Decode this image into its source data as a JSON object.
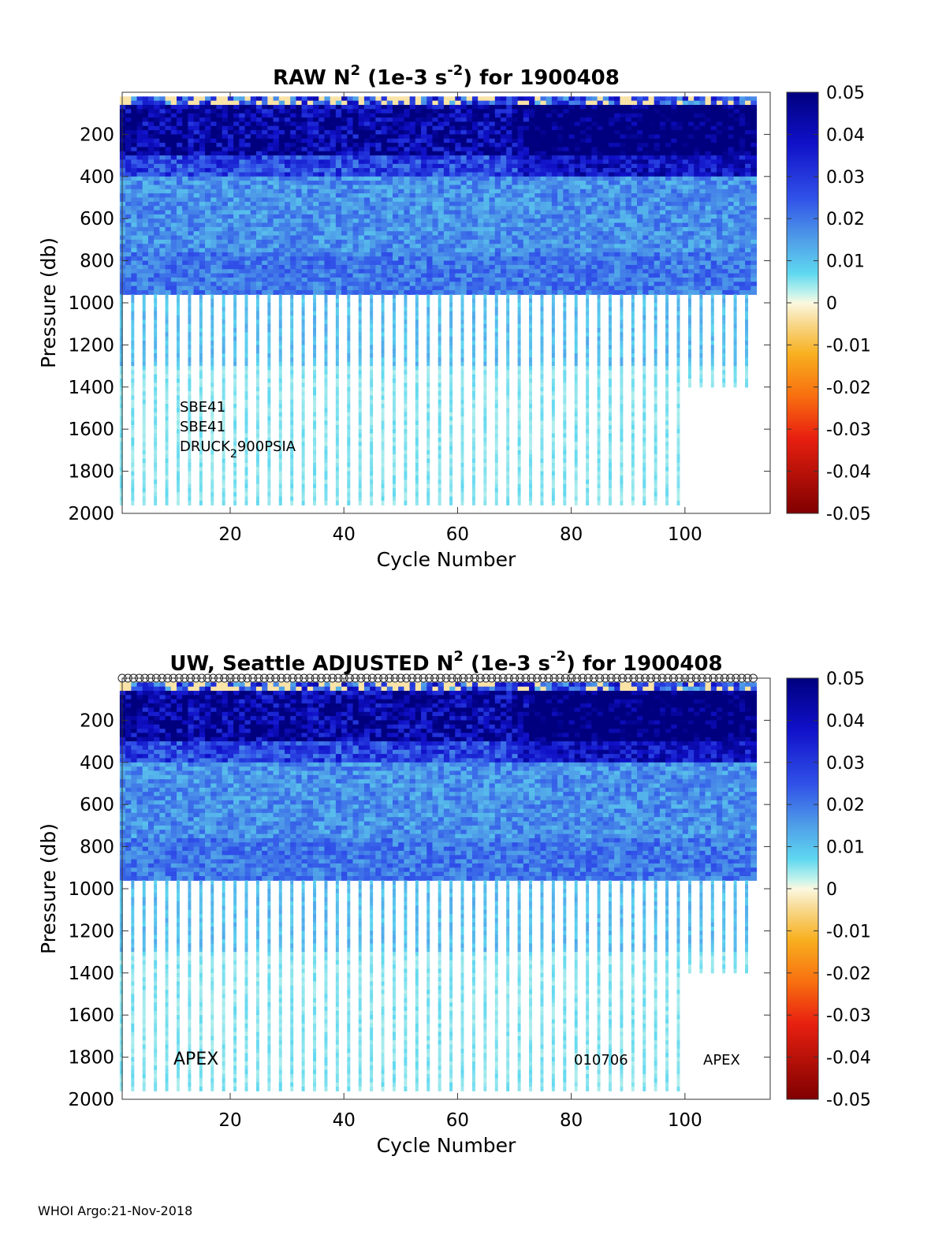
{
  "footer": "WHOI Argo:21-Nov-2018",
  "colorbar": {
    "ticks": [
      "0.05",
      "0.04",
      "0.03",
      "0.02",
      "0.01",
      "0",
      "-0.01",
      "-0.02",
      "-0.03",
      "-0.04",
      "-0.05"
    ],
    "range": [
      -0.05,
      0.05
    ]
  },
  "chart_data": [
    {
      "type": "heatmap",
      "title": {
        "main": "RAW N",
        "sup1": "2",
        "mid": " (1e-3 s",
        "sup2": "-2",
        "end": ") for 1900408"
      },
      "xlabel": "Cycle Number",
      "ylabel": "Pressure (db)",
      "xlim": [
        1,
        115
      ],
      "ylim": [
        0,
        2000
      ],
      "y_reversed": true,
      "xticks": [
        "20",
        "40",
        "60",
        "80",
        "100"
      ],
      "yticks": [
        "200",
        "400",
        "600",
        "800",
        "1000",
        "1200",
        "1400",
        "1600",
        "1800",
        "2000"
      ],
      "color_range": [
        -0.05,
        0.05
      ],
      "annotations": [
        {
          "text": "SBE41"
        },
        {
          "text": "SBE41"
        },
        {
          "text": "DRUCK",
          "sub": "2",
          "rest": "900PSIA"
        }
      ]
    },
    {
      "type": "heatmap",
      "title": {
        "main": "UW, Seattle  ADJUSTED N",
        "sup1": "2",
        "mid": " (1e-3 s",
        "sup2": "-2",
        "end": ") for 1900408"
      },
      "xlabel": "Cycle Number",
      "ylabel": "Pressure (db)",
      "xlim": [
        1,
        115
      ],
      "ylim": [
        0,
        2000
      ],
      "y_reversed": true,
      "xticks": [
        "20",
        "40",
        "60",
        "80",
        "100"
      ],
      "yticks": [
        "200",
        "400",
        "600",
        "800",
        "1000",
        "1200",
        "1400",
        "1600",
        "1800",
        "2000"
      ],
      "color_range": [
        -0.05,
        0.05
      ],
      "top_markers": "open circles at each cycle along top axis",
      "annotations": [
        {
          "text": "APEX"
        },
        {
          "text": "010706"
        },
        {
          "text": "APEX"
        }
      ]
    }
  ]
}
